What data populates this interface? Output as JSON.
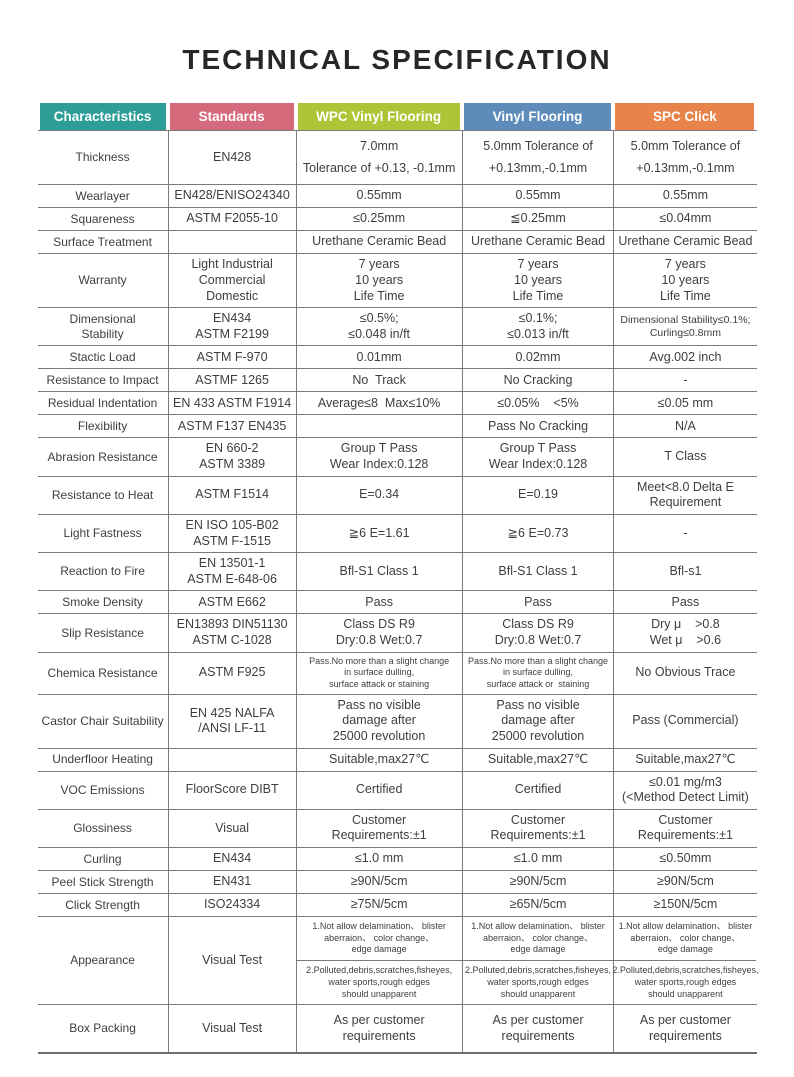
{
  "title": "TECHNICAL SPECIFICATION",
  "table": {
    "headers": [
      {
        "label": "Characteristics",
        "color": "#2E9D97"
      },
      {
        "label": "Standards",
        "color": "#D56A7C"
      },
      {
        "label": "WPC Vinyl Flooring",
        "color": "#AFC437"
      },
      {
        "label": "Vinyl Flooring",
        "color": "#5D8CBA"
      },
      {
        "label": "SPC Click",
        "color": "#E8834B"
      }
    ],
    "rows": [
      {
        "name": "thickness",
        "cls": "loose",
        "label": [
          "Thickness"
        ],
        "standard": [
          "EN428"
        ],
        "values": [
          [
            "7.0mm",
            "Tolerance of +0.13, -0.1mm"
          ],
          [
            "5.0mm Tolerance of",
            "+0.13mm,-0.1mm"
          ],
          [
            "5.0mm Tolerance of",
            "+0.13mm,-0.1mm"
          ]
        ]
      },
      {
        "name": "wearlayer",
        "label": [
          "Wearlayer"
        ],
        "standard": [
          "EN428/ENISO24340"
        ],
        "values": [
          [
            "0.55mm"
          ],
          [
            "0.55mm"
          ],
          [
            "0.55mm"
          ]
        ]
      },
      {
        "name": "squareness",
        "label": [
          "Squareness"
        ],
        "standard": [
          "ASTM F2055-10"
        ],
        "values": [
          [
            "≤0.25mm"
          ],
          [
            "≦0.25mm"
          ],
          [
            "≤0.04mm"
          ]
        ]
      },
      {
        "name": "surface-treatment",
        "label": [
          "Surface Treatment"
        ],
        "standard": [
          ""
        ],
        "values": [
          [
            "Urethane Ceramic Bead"
          ],
          [
            "Urethane Ceramic Bead"
          ],
          [
            "Urethane Ceramic Bead"
          ]
        ]
      },
      {
        "name": "warranty",
        "label": [
          "Warranty"
        ],
        "standard": [
          "Light Industrial",
          "Commercial",
          "Domestic"
        ],
        "values": [
          [
            "7 years",
            "10 years",
            "Life Time"
          ],
          [
            "7 years",
            "10 years",
            "Life Time"
          ],
          [
            "7 years",
            "10 years",
            "Life Time"
          ]
        ]
      },
      {
        "name": "dimensional-stability",
        "cls": "fit-last",
        "label": [
          "Dimensional",
          "Stability"
        ],
        "standard": [
          "EN434",
          "ASTM F2199"
        ],
        "values": [
          [
            "≤0.5%;",
            "≤0.048 in/ft"
          ],
          [
            "≤0.1%;",
            "≤0.013 in/ft"
          ],
          [
            "Dimensional Stability≤0.1%;",
            "Curling≤0.8mm"
          ]
        ]
      },
      {
        "name": "static-load",
        "label": [
          "Stactic Load"
        ],
        "standard": [
          "ASTM F-970"
        ],
        "values": [
          [
            "0.01mm"
          ],
          [
            "0.02mm"
          ],
          [
            "Avg.002 inch"
          ]
        ]
      },
      {
        "name": "resistance-to-impact",
        "label": [
          "Resistance to Impact"
        ],
        "standard": [
          "ASTMF 1265"
        ],
        "values": [
          [
            "No  Track"
          ],
          [
            "No Cracking"
          ],
          [
            "-"
          ]
        ]
      },
      {
        "name": "residual-indentation",
        "label": [
          "Residual Indentation"
        ],
        "standard": [
          "EN 433 ASTM F1914"
        ],
        "values": [
          [
            "Average≤8  Max≤10%"
          ],
          [
            "≤0.05%    <5%"
          ],
          [
            "≤0.05 mm"
          ]
        ]
      },
      {
        "name": "flexibility",
        "label": [
          "Flexibility"
        ],
        "standard": [
          "ASTM F137 EN435"
        ],
        "values": [
          [
            ""
          ],
          [
            "Pass No Cracking"
          ],
          [
            "N/A"
          ]
        ]
      },
      {
        "name": "abrasion-resistance",
        "label": [
          "Abrasion Resistance"
        ],
        "standard": [
          "EN 660-2",
          "ASTM 3389"
        ],
        "values": [
          [
            "Group T Pass",
            "Wear Index:0.128"
          ],
          [
            "Group T Pass",
            "Wear Index:0.128"
          ],
          [
            "T Class"
          ]
        ]
      },
      {
        "name": "resistance-to-heat",
        "label": [
          "Resistance to Heat"
        ],
        "standard": [
          "ASTM F1514"
        ],
        "values": [
          [
            "E=0.34"
          ],
          [
            "E=0.19"
          ],
          [
            "Meet<8.0 Delta E",
            "Requirement"
          ]
        ]
      },
      {
        "name": "light-fastness",
        "label": [
          "Light Fastness"
        ],
        "standard": [
          "EN ISO 105-B02",
          "ASTM F-1515"
        ],
        "values": [
          [
            "≧6 E=1.61"
          ],
          [
            "≧6 E=0.73"
          ],
          [
            "-"
          ]
        ]
      },
      {
        "name": "reaction-to-fire",
        "label": [
          "Reaction to Fire"
        ],
        "standard": [
          "EN 13501-1",
          "ASTM E-648-06"
        ],
        "values": [
          [
            "Bfl-S1 Class 1"
          ],
          [
            "Bfl-S1 Class 1"
          ],
          [
            "Bfl-s1"
          ]
        ]
      },
      {
        "name": "smoke-density",
        "label": [
          "Smoke Density"
        ],
        "standard": [
          "ASTM E662"
        ],
        "values": [
          [
            "Pass"
          ],
          [
            "Pass"
          ],
          [
            "Pass"
          ]
        ]
      },
      {
        "name": "slip-resistance",
        "label": [
          "Slip Resistance"
        ],
        "standard": [
          "EN13893 DIN51130",
          "ASTM C-1028"
        ],
        "values": [
          [
            "Class DS R9",
            "Dry:0.8 Wet:0.7"
          ],
          [
            "Class DS R9",
            "Dry:0.8 Wet:0.7"
          ],
          [
            "Dry μ    >0.8",
            "Wet μ    >0.6"
          ]
        ]
      },
      {
        "name": "chemical-resistance",
        "cls": "small",
        "label": [
          "Chemica Resistance"
        ],
        "standard": [
          "ASTM F925"
        ],
        "values": [
          [
            "Pass.No more than a slight change",
            "in surface dulling,",
            "surface attack or staining"
          ],
          [
            "Pass.No more than a slight change",
            "in surface dulling,",
            "surface attack or  staining"
          ],
          [
            "No Obvious Trace"
          ]
        ]
      },
      {
        "name": "castor-chair-suitability",
        "label": [
          "Castor Chair Suitability"
        ],
        "standard": [
          "EN 425 NALFA",
          "/ANSI LF-11"
        ],
        "values": [
          [
            "Pass no visible",
            "damage after",
            "25000 revolution"
          ],
          [
            "Pass no visible",
            "damage after",
            "25000 revolution"
          ],
          [
            "Pass (Commercial)"
          ]
        ]
      },
      {
        "name": "underfloor-heating",
        "label": [
          "Underfloor Heating"
        ],
        "standard": [
          ""
        ],
        "values": [
          [
            "Suitable,max27℃"
          ],
          [
            "Suitable,max27℃"
          ],
          [
            "Suitable,max27℃"
          ]
        ]
      },
      {
        "name": "voc-emissions",
        "label": [
          "VOC Emissions"
        ],
        "standard": [
          "FloorScore DIBT"
        ],
        "values": [
          [
            "Certified"
          ],
          [
            "Certified"
          ],
          [
            "≤0.01 mg/m3",
            "(<Method Detect Limit)"
          ]
        ]
      },
      {
        "name": "glossiness",
        "label": [
          "Glossiness"
        ],
        "standard": [
          "Visual"
        ],
        "values": [
          [
            "Customer",
            "Requirements:±1"
          ],
          [
            "Customer",
            "Requirements:±1"
          ],
          [
            "Customer",
            "Requirements:±1"
          ]
        ]
      },
      {
        "name": "curling",
        "label": [
          "Curling"
        ],
        "standard": [
          "EN434"
        ],
        "values": [
          [
            "≤1.0 mm"
          ],
          [
            "≤1.0 mm"
          ],
          [
            "≤0.50mm"
          ]
        ]
      },
      {
        "name": "peel-stick-strength",
        "label": [
          "Peel Stick Strength"
        ],
        "standard": [
          "EN431"
        ],
        "values": [
          [
            "≥90N/5cm"
          ],
          [
            "≥90N/5cm"
          ],
          [
            "≥90N/5cm"
          ]
        ]
      },
      {
        "name": "click-strength",
        "label": [
          "Click Strength"
        ],
        "standard": [
          "ISO24334"
        ],
        "values": [
          [
            "≥75N/5cm"
          ],
          [
            "≥65N/5cm"
          ],
          [
            "≥150N/5cm"
          ]
        ]
      },
      {
        "name": "appearance",
        "cls": "small-all",
        "split": true,
        "label": [
          "Appearance"
        ],
        "standard": [
          "Visual Test"
        ],
        "values": [
          [
            [
              "1.Not allow delamination、 blister",
              "aberraion、 color change、",
              "edge damage"
            ],
            [
              "2.Polluted,debris,scratches,fisheyes,",
              "water sports,rough edges",
              "should unapparent"
            ]
          ],
          [
            [
              "1.Not allow delamination、 blister",
              "aberraion、 color change、",
              "edge damage"
            ],
            [
              "2.Polluted,debris,scratches,fisheyes,",
              "water sports,rough edges",
              "should unapparent"
            ]
          ],
          [
            [
              "1.Not allow delamination、 blister",
              "aberraion、 color change、",
              "edge damage"
            ],
            [
              "2.Polluted,debris,scratches,fisheyes,",
              "water sports,rough edges",
              "should unapparent"
            ]
          ]
        ]
      },
      {
        "name": "box-packing",
        "cls": "pad8",
        "label": [
          "Box Packing"
        ],
        "standard": [
          "Visual Test"
        ],
        "values": [
          [
            "As per customer",
            "requirements"
          ],
          [
            "As per customer",
            "requirements"
          ],
          [
            "As per customer",
            "requirements"
          ]
        ]
      }
    ]
  }
}
